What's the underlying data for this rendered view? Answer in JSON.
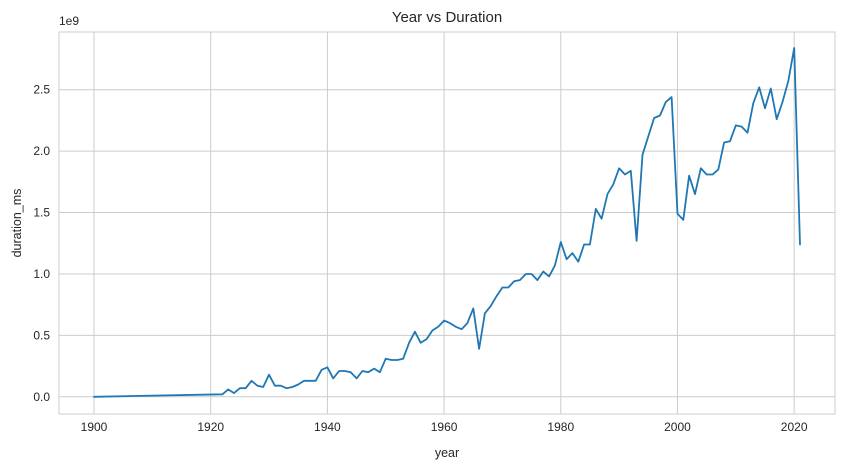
{
  "chart_data": {
    "type": "line",
    "title": "Year vs Duration",
    "xlabel": "year",
    "ylabel": "duration_ms",
    "y_offset_label": "1e9",
    "xlim": [
      1894,
      2027
    ],
    "ylim": [
      -0.14,
      2.97
    ],
    "x_ticks": [
      1900,
      1920,
      1940,
      1960,
      1980,
      2000,
      2020
    ],
    "y_ticks": [
      0.0,
      0.5,
      1.0,
      1.5,
      2.0,
      2.5
    ],
    "x_tick_labels": [
      "1900",
      "1920",
      "1940",
      "1960",
      "1980",
      "2000",
      "2020"
    ],
    "y_tick_labels": [
      "0.0",
      "0.5",
      "1.0",
      "1.5",
      "2.0",
      "2.5"
    ],
    "grid": true,
    "line_color": "#1f77b4",
    "series": [
      {
        "x": [
          1900,
          1922,
          1923,
          1924,
          1925,
          1926,
          1927,
          1928,
          1929,
          1930,
          1931,
          1932,
          1933,
          1934,
          1935,
          1936,
          1937,
          1938,
          1939,
          1940,
          1941,
          1942,
          1943,
          1944,
          1945,
          1946,
          1947,
          1948,
          1949,
          1950,
          1951,
          1952,
          1953,
          1954,
          1955,
          1956,
          1957,
          1958,
          1959,
          1960,
          1961,
          1962,
          1963,
          1964,
          1965,
          1966,
          1967,
          1968,
          1969,
          1970,
          1971,
          1972,
          1973,
          1974,
          1975,
          1976,
          1977,
          1978,
          1979,
          1980,
          1981,
          1982,
          1983,
          1984,
          1985,
          1986,
          1987,
          1988,
          1989,
          1990,
          1991,
          1992,
          1993,
          1994,
          1995,
          1996,
          1997,
          1998,
          1999,
          2000,
          2001,
          2002,
          2003,
          2004,
          2005,
          2006,
          2007,
          2008,
          2009,
          2010,
          2011,
          2012,
          2013,
          2014,
          2015,
          2016,
          2017,
          2018,
          2019,
          2020,
          2021
        ],
        "values": [
          0.0,
          0.02,
          0.06,
          0.03,
          0.07,
          0.07,
          0.13,
          0.09,
          0.08,
          0.18,
          0.09,
          0.09,
          0.07,
          0.08,
          0.1,
          0.13,
          0.13,
          0.13,
          0.22,
          0.24,
          0.15,
          0.21,
          0.21,
          0.2,
          0.15,
          0.21,
          0.2,
          0.23,
          0.2,
          0.31,
          0.3,
          0.3,
          0.31,
          0.44,
          0.53,
          0.44,
          0.47,
          0.54,
          0.57,
          0.62,
          0.6,
          0.57,
          0.55,
          0.6,
          0.72,
          0.39,
          0.68,
          0.74,
          0.82,
          0.89,
          0.89,
          0.94,
          0.95,
          1.0,
          1.0,
          0.95,
          1.02,
          0.98,
          1.07,
          1.26,
          1.12,
          1.17,
          1.1,
          1.24,
          1.24,
          1.53,
          1.45,
          1.65,
          1.73,
          1.86,
          1.81,
          1.84,
          1.27,
          1.97,
          2.12,
          2.27,
          2.29,
          2.4,
          2.44,
          1.49,
          1.44,
          1.8,
          1.65,
          1.86,
          1.81,
          1.81,
          1.85,
          2.07,
          2.08,
          2.21,
          2.2,
          2.15,
          2.39,
          2.52,
          2.35,
          2.51,
          2.26,
          2.4,
          2.57,
          2.84,
          1.24
        ]
      }
    ]
  }
}
